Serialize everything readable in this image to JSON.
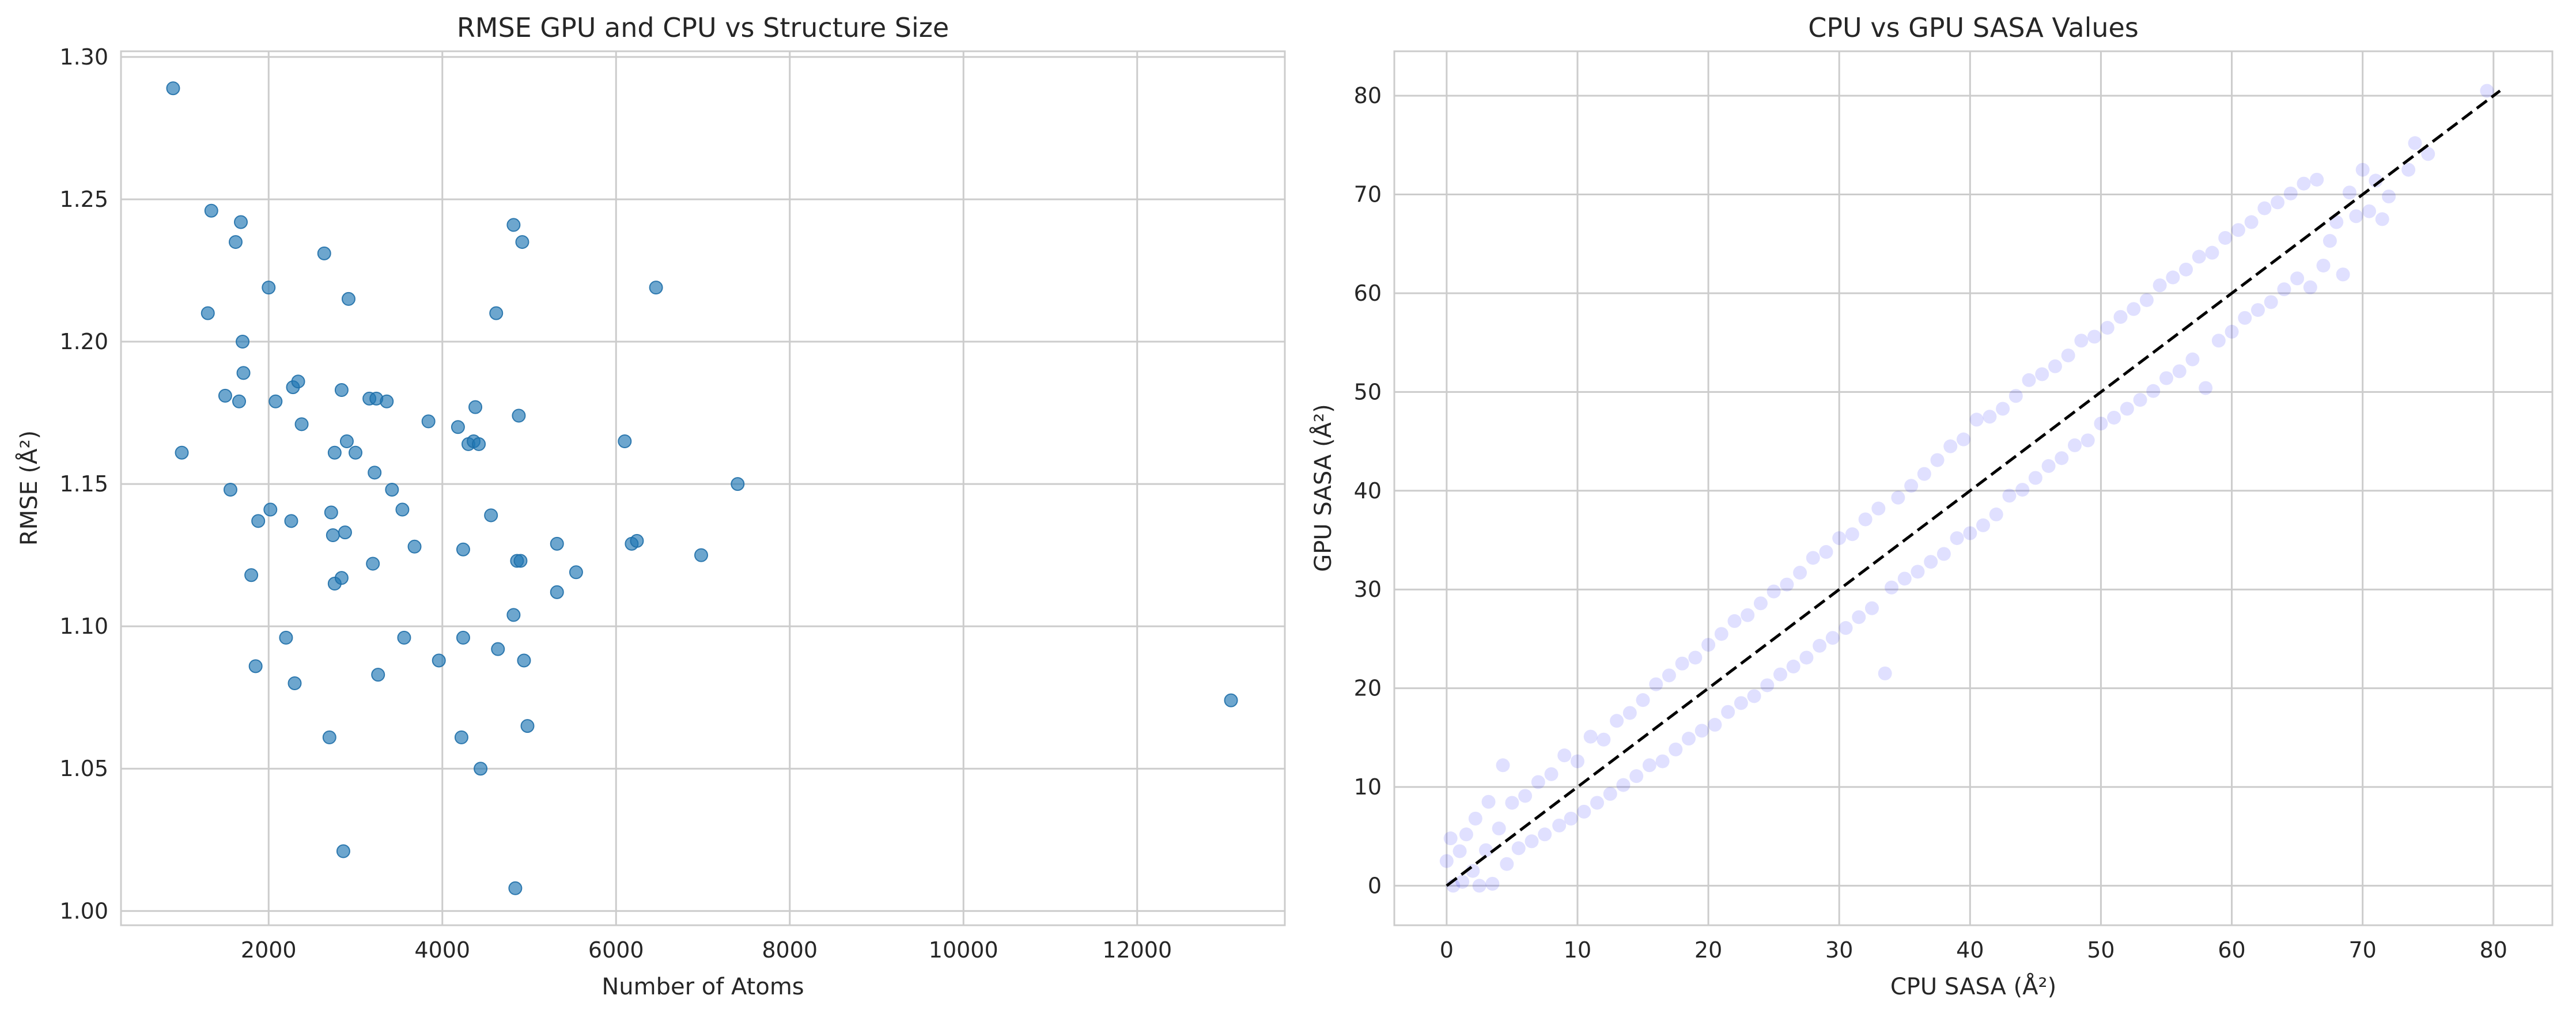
{
  "chart_data": [
    {
      "type": "scatter",
      "title": "RMSE GPU and CPU vs Structure Size",
      "xlabel": "Number of Atoms",
      "ylabel": "RMSE (Å²)",
      "xlim": [
        300,
        13700
      ],
      "ylim": [
        0.995,
        1.302
      ],
      "xticks": [
        2000,
        4000,
        6000,
        8000,
        10000,
        12000
      ],
      "yticks": [
        1.0,
        1.05,
        1.1,
        1.15,
        1.2,
        1.25,
        1.3
      ],
      "ytick_labels": [
        "1.00",
        "1.05",
        "1.10",
        "1.15",
        "1.20",
        "1.25",
        "1.30"
      ],
      "grid": true,
      "color": "#1f77b4",
      "points": [
        [
          900,
          1.289
        ],
        [
          1000,
          1.161
        ],
        [
          1300,
          1.21
        ],
        [
          1340,
          1.246
        ],
        [
          1500,
          1.181
        ],
        [
          1560,
          1.148
        ],
        [
          1620,
          1.235
        ],
        [
          1660,
          1.179
        ],
        [
          1680,
          1.242
        ],
        [
          1700,
          1.2
        ],
        [
          1710,
          1.189
        ],
        [
          1800,
          1.118
        ],
        [
          1850,
          1.086
        ],
        [
          1880,
          1.137
        ],
        [
          2000,
          1.219
        ],
        [
          2020,
          1.141
        ],
        [
          2080,
          1.179
        ],
        [
          2200,
          1.096
        ],
        [
          2260,
          1.137
        ],
        [
          2280,
          1.184
        ],
        [
          2300,
          1.08
        ],
        [
          2340,
          1.186
        ],
        [
          2380,
          1.171
        ],
        [
          2640,
          1.231
        ],
        [
          2700,
          1.061
        ],
        [
          2720,
          1.14
        ],
        [
          2740,
          1.132
        ],
        [
          2760,
          1.161
        ],
        [
          2760,
          1.115
        ],
        [
          2840,
          1.183
        ],
        [
          2840,
          1.117
        ],
        [
          2860,
          1.021
        ],
        [
          2880,
          1.133
        ],
        [
          2900,
          1.165
        ],
        [
          2920,
          1.215
        ],
        [
          3000,
          1.161
        ],
        [
          3160,
          1.18
        ],
        [
          3200,
          1.122
        ],
        [
          3220,
          1.154
        ],
        [
          3240,
          1.18
        ],
        [
          3260,
          1.083
        ],
        [
          3360,
          1.179
        ],
        [
          3420,
          1.148
        ],
        [
          3540,
          1.141
        ],
        [
          3560,
          1.096
        ],
        [
          3680,
          1.128
        ],
        [
          3840,
          1.172
        ],
        [
          3960,
          1.088
        ],
        [
          4180,
          1.17
        ],
        [
          4220,
          1.061
        ],
        [
          4240,
          1.127
        ],
        [
          4240,
          1.096
        ],
        [
          4300,
          1.164
        ],
        [
          4360,
          1.165
        ],
        [
          4380,
          1.177
        ],
        [
          4420,
          1.164
        ],
        [
          4440,
          1.05
        ],
        [
          4560,
          1.139
        ],
        [
          4620,
          1.21
        ],
        [
          4640,
          1.092
        ],
        [
          4820,
          1.241
        ],
        [
          4820,
          1.104
        ],
        [
          4840,
          1.008
        ],
        [
          4860,
          1.123
        ],
        [
          4880,
          1.174
        ],
        [
          4900,
          1.123
        ],
        [
          4920,
          1.235
        ],
        [
          4940,
          1.088
        ],
        [
          4980,
          1.065
        ],
        [
          5320,
          1.129
        ],
        [
          5320,
          1.112
        ],
        [
          5540,
          1.119
        ],
        [
          6100,
          1.165
        ],
        [
          6180,
          1.129
        ],
        [
          6240,
          1.13
        ],
        [
          6460,
          1.219
        ],
        [
          6980,
          1.125
        ],
        [
          7400,
          1.15
        ],
        [
          13080,
          1.074
        ]
      ]
    },
    {
      "type": "scatter",
      "title": "CPU vs GPU SASA Values",
      "xlabel": "CPU SASA (Å²)",
      "ylabel": "GPU SASA (Å²)",
      "xlim": [
        -4,
        84.5
      ],
      "ylim": [
        -4,
        84.5
      ],
      "xticks": [
        0,
        10,
        20,
        30,
        40,
        50,
        60,
        70,
        80
      ],
      "yticks": [
        0,
        10,
        20,
        30,
        40,
        50,
        60,
        70,
        80
      ],
      "grid": true,
      "color": "#0000ff",
      "reference_line": {
        "from": [
          0,
          0
        ],
        "to": [
          80.5,
          80.5
        ],
        "style": "dashed",
        "color": "#000000"
      },
      "points": [
        [
          0,
          2.5
        ],
        [
          0.3,
          4.8
        ],
        [
          0.5,
          0
        ],
        [
          1,
          3.5
        ],
        [
          1.2,
          0.4
        ],
        [
          1.5,
          5.2
        ],
        [
          2,
          1.5
        ],
        [
          2.2,
          6.8
        ],
        [
          2.5,
          0
        ],
        [
          3,
          3.6
        ],
        [
          3.2,
          8.5
        ],
        [
          3.5,
          0.2
        ],
        [
          4,
          5.8
        ],
        [
          4.3,
          12.2
        ],
        [
          4.6,
          2.2
        ],
        [
          5,
          8.4
        ],
        [
          5.5,
          3.8
        ],
        [
          6,
          9.1
        ],
        [
          6.5,
          4.5
        ],
        [
          7,
          10.5
        ],
        [
          7.5,
          5.2
        ],
        [
          8,
          11.3
        ],
        [
          8.6,
          6.1
        ],
        [
          9,
          13.2
        ],
        [
          9.5,
          6.8
        ],
        [
          10,
          12.6
        ],
        [
          10.5,
          7.5
        ],
        [
          11,
          15.1
        ],
        [
          11.5,
          8.4
        ],
        [
          12,
          14.8
        ],
        [
          12.5,
          9.3
        ],
        [
          13,
          16.7
        ],
        [
          13.5,
          10.2
        ],
        [
          14,
          17.5
        ],
        [
          14.5,
          11.1
        ],
        [
          15,
          18.8
        ],
        [
          15.5,
          12.2
        ],
        [
          16,
          20.4
        ],
        [
          16.5,
          12.6
        ],
        [
          17,
          21.3
        ],
        [
          17.5,
          13.8
        ],
        [
          18,
          22.5
        ],
        [
          18.5,
          14.9
        ],
        [
          19,
          23.1
        ],
        [
          19.5,
          15.7
        ],
        [
          20,
          24.4
        ],
        [
          20.5,
          16.3
        ],
        [
          21,
          25.5
        ],
        [
          21.5,
          17.6
        ],
        [
          22,
          26.8
        ],
        [
          22.5,
          18.5
        ],
        [
          23,
          27.4
        ],
        [
          23.5,
          19.2
        ],
        [
          24,
          28.6
        ],
        [
          24.5,
          20.3
        ],
        [
          25,
          29.8
        ],
        [
          25.5,
          21.4
        ],
        [
          26,
          30.5
        ],
        [
          26.5,
          22.2
        ],
        [
          27,
          31.7
        ],
        [
          27.5,
          23.1
        ],
        [
          28,
          33.2
        ],
        [
          28.5,
          24.3
        ],
        [
          29,
          33.8
        ],
        [
          29.5,
          25.1
        ],
        [
          30,
          35.2
        ],
        [
          30.5,
          26.1
        ],
        [
          31,
          35.6
        ],
        [
          31.5,
          27.2
        ],
        [
          32,
          37.1
        ],
        [
          32.5,
          28.1
        ],
        [
          33.5,
          21.5
        ],
        [
          33,
          38.2
        ],
        [
          34,
          30.2
        ],
        [
          34.5,
          39.3
        ],
        [
          35,
          31.1
        ],
        [
          35.5,
          40.5
        ],
        [
          36,
          31.8
        ],
        [
          36.5,
          41.7
        ],
        [
          37,
          32.8
        ],
        [
          37.5,
          43.1
        ],
        [
          38,
          33.6
        ],
        [
          38.5,
          44.5
        ],
        [
          39,
          35.2
        ],
        [
          39.5,
          45.2
        ],
        [
          40,
          35.7
        ],
        [
          40.5,
          47.2
        ],
        [
          41,
          36.5
        ],
        [
          41.5,
          47.5
        ],
        [
          42,
          37.6
        ],
        [
          42.5,
          48.3
        ],
        [
          43,
          39.5
        ],
        [
          43.5,
          49.6
        ],
        [
          44,
          40.1
        ],
        [
          44.5,
          51.2
        ],
        [
          45,
          41.3
        ],
        [
          45.5,
          51.8
        ],
        [
          46,
          42.5
        ],
        [
          46.5,
          52.6
        ],
        [
          47,
          43.3
        ],
        [
          47.5,
          53.7
        ],
        [
          48,
          44.6
        ],
        [
          48.5,
          55.2
        ],
        [
          49,
          45.1
        ],
        [
          49.5,
          55.6
        ],
        [
          50,
          46.8
        ],
        [
          50.5,
          56.5
        ],
        [
          51,
          47.4
        ],
        [
          51.5,
          57.6
        ],
        [
          52,
          48.3
        ],
        [
          52.5,
          58.4
        ],
        [
          53,
          49.2
        ],
        [
          53.5,
          59.3
        ],
        [
          54,
          50.1
        ],
        [
          54.5,
          60.8
        ],
        [
          55,
          51.4
        ],
        [
          55.5,
          61.6
        ],
        [
          56,
          52.1
        ],
        [
          56.5,
          62.4
        ],
        [
          57,
          53.3
        ],
        [
          57.5,
          63.7
        ],
        [
          58,
          50.4
        ],
        [
          58.5,
          64.1
        ],
        [
          59,
          55.2
        ],
        [
          59.5,
          65.6
        ],
        [
          60,
          56.1
        ],
        [
          60.5,
          66.4
        ],
        [
          61,
          57.5
        ],
        [
          61.5,
          67.2
        ],
        [
          62,
          58.3
        ],
        [
          62.5,
          68.6
        ],
        [
          63,
          59.1
        ],
        [
          63.5,
          69.2
        ],
        [
          64,
          60.4
        ],
        [
          64.5,
          70.1
        ],
        [
          65,
          61.5
        ],
        [
          65.5,
          71.1
        ],
        [
          66,
          60.6
        ],
        [
          66.5,
          71.5
        ],
        [
          67,
          62.8
        ],
        [
          67.5,
          65.3
        ],
        [
          68,
          67.2
        ],
        [
          68.5,
          61.9
        ],
        [
          69,
          70.2
        ],
        [
          69.5,
          67.8
        ],
        [
          70,
          72.5
        ],
        [
          70.5,
          68.3
        ],
        [
          71,
          71.4
        ],
        [
          71.5,
          67.5
        ],
        [
          72,
          69.8
        ],
        [
          73.5,
          72.5
        ],
        [
          74,
          75.2
        ],
        [
          75,
          74.1
        ],
        [
          79.5,
          80.5
        ]
      ]
    }
  ]
}
